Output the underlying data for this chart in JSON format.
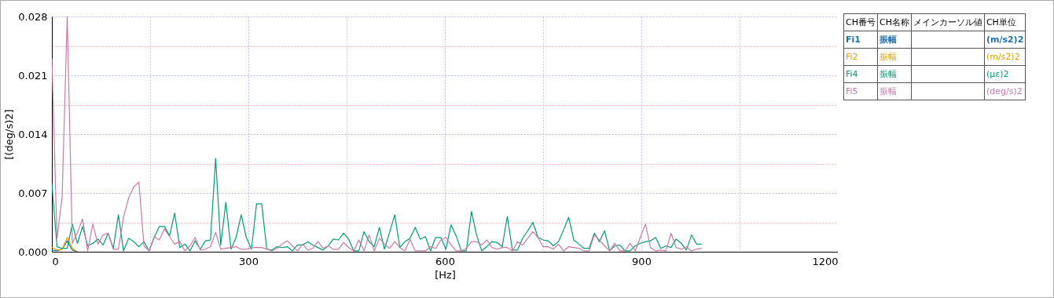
{
  "chart_data": {
    "type": "line",
    "xlabel": "[Hz]",
    "ylabel": "[(deg/s)2]",
    "legend": "right",
    "grid": true,
    "xlim": [
      0,
      1200
    ],
    "xticks": [
      0,
      {
        "value": 150,
        "label": null
      },
      300,
      {
        "value": 450,
        "label": null
      },
      600,
      {
        "value": 750,
        "label": null
      },
      900,
      {
        "value": 1050,
        "label": null
      },
      1200
    ],
    "ylim": [
      0,
      0.028
    ],
    "yticks": [
      {
        "value": 0,
        "label": "0.000"
      },
      {
        "value": 0.0035,
        "label": null
      },
      0.007,
      {
        "value": 0.0105,
        "label": null
      },
      0.014,
      {
        "value": 0.0175,
        "label": null
      },
      0.021,
      {
        "value": 0.0245,
        "label": null
      },
      0.028
    ],
    "annotations": [
      "CH番号",
      "CH名称",
      "メインカーソル値",
      "CH単位",
      "振幅",
      "(m/s2)2",
      "振幅",
      "(m/s2)2",
      "振幅",
      "(με)2",
      "振幅",
      "(deg/s)2"
    ],
    "x": [
      0,
      7.8125,
      15.625,
      23.4375,
      31.25,
      39.0625,
      46.875,
      54.6875,
      62.5,
      70.3125,
      78.125,
      85.9375,
      93.75,
      101.5625,
      109.375,
      117.1875,
      125,
      132.8125,
      140.625,
      148.4375,
      156.25,
      164.0625,
      171.875,
      179.6875,
      187.5,
      195.3125,
      203.125,
      210.9375,
      218.75,
      226.5625,
      234.375,
      242.1875,
      250,
      257.8125,
      265.625,
      273.4375,
      281.25,
      289.0625,
      296.875,
      304.6875,
      312.5,
      320.3125,
      328.125,
      335.9375,
      343.75,
      351.5625,
      359.375,
      367.1875,
      375,
      382.8125,
      390.625,
      398.4375,
      406.25,
      414.0625,
      421.875,
      429.6875,
      437.5,
      445.3125,
      453.125,
      460.9375,
      468.75,
      476.5625,
      484.375,
      492.1875,
      500,
      507.8125,
      515.625,
      523.4375,
      531.25,
      539.0625,
      546.875,
      554.6875,
      562.5,
      570.3125,
      578.125,
      585.9375,
      593.75,
      601.5625,
      609.375,
      617.1875,
      625,
      632.8125,
      640.625,
      648.4375,
      656.25,
      664.0625,
      671.875,
      679.6875,
      687.5,
      695.3125,
      703.125,
      710.9375,
      718.75,
      726.5625,
      734.375,
      742.1875,
      750,
      757.8125,
      765.625,
      773.4375,
      781.25,
      789.0625,
      796.875,
      804.6875,
      812.5,
      820.3125,
      828.125,
      835.9375,
      843.75,
      851.5625,
      859.375,
      867.1875,
      875,
      882.8125,
      890.625,
      898.4375,
      906.25,
      914.0625,
      921.875,
      929.6875,
      937.5,
      945.3125,
      953.125,
      960.9375,
      968.75,
      976.5625,
      984.375,
      992.1875
    ],
    "series": [
      {
        "name": "Fi1",
        "color": "#1a72b5",
        "x": [
          0,
          7.8125,
          15.625,
          23.4375,
          31.25,
          39.0625
        ],
        "values": [
          0.0002,
          0.0001,
          0.0003,
          0.0013,
          0.0002,
          0
        ]
      },
      {
        "name": "Fi2",
        "color": "#e69f00",
        "x": [
          0,
          7.8125,
          15.625,
          23.4375,
          31.25,
          39.0625
        ],
        "values": [
          0.0005,
          0.0002,
          0.0003,
          0.0017,
          0.0004,
          0
        ]
      },
      {
        "name": "Fi4",
        "color": "#009e73",
        "values": [
          0.0081,
          0.0006,
          0.0004,
          0.0004,
          0.0033,
          0.001,
          0.003,
          0.0007,
          0.001,
          0.0015,
          0.0008,
          0.0022,
          0.0004,
          0.0044,
          0.0001,
          0.0016,
          0.0012,
          0.0006,
          0.0012,
          0.0001,
          0.0017,
          0.003,
          0.003,
          0.0019,
          0.0046,
          0.0005,
          0.0009,
          0.0001,
          0.0013,
          0.0003,
          0.0013,
          0.0014,
          0.0111,
          0.0008,
          0.0059,
          0.0003,
          0.0017,
          0.0044,
          0.0017,
          0.0003,
          0.0057,
          0.0057,
          0.0003,
          0.0002,
          0.0006,
          0.0005,
          0.0006,
          0.0001,
          0.0008,
          0.0008,
          0.0012,
          0.0008,
          0.0005,
          0.0002,
          0.0007,
          0.0015,
          0.0014,
          0.0022,
          0.0015,
          0.0001,
          0.0001,
          0.0024,
          0.0012,
          0.0006,
          0.0029,
          0.0003,
          0.0023,
          0.0044,
          0.0005,
          0.0012,
          0.0016,
          0.0029,
          0.0015,
          0.0018,
          0.0001,
          0.0017,
          0.0017,
          0.0003,
          0.0032,
          0.0019,
          0.0001,
          0.0001,
          0.0048,
          0.002,
          0.0001,
          0.0006,
          0.0012,
          0.0011,
          0.0006,
          0.0042,
          0.0002,
          0.0002,
          0.0016,
          0.0025,
          0.0035,
          0.0017,
          0.0014,
          0.0013,
          0.0007,
          0.0012,
          0.0026,
          0.0041,
          0.0014,
          0.0009,
          0.0004,
          0.0004,
          0.0022,
          0.0012,
          0.0025,
          0.0001,
          0.0007,
          0.0008,
          0.0001,
          0.0001,
          0.0007,
          0.001,
          0.0012,
          0.0013,
          0.0017,
          0.0004,
          0.0007,
          0.0005,
          0.0015,
          0.001,
          0.0002,
          0.002,
          0.0009,
          0.0009
        ]
      },
      {
        "name": "Fi5",
        "color": "#cc79a7",
        "values": [
          0.023,
          0.0016,
          0.0065,
          0.028,
          0.001,
          0.0023,
          0.0039,
          0.0001,
          0.0033,
          0.0009,
          0.002,
          0.0022,
          0.0003,
          0.0003,
          0.0041,
          0.0064,
          0.0077,
          0.0083,
          0.0007,
          0.0001,
          0.0018,
          0.0014,
          0.0027,
          0.0018,
          0.0009,
          0.0012,
          0.0001,
          0.0007,
          0.0017,
          0.0002,
          0.0003,
          0.0006,
          0.0023,
          0.0003,
          0.0004,
          0.0005,
          0.0006,
          0.0003,
          0.0003,
          0.0005,
          0.0005,
          0.0005,
          0.0003,
          0.0001,
          0.0004,
          0.0009,
          0.0013,
          0.0007,
          0.0001,
          0.0009,
          0.0002,
          0.0004,
          0.0012,
          0.0004,
          0.0007,
          0.0003,
          0.0003,
          0.0011,
          0.0005,
          0.0001,
          0.0014,
          0.0001,
          0.002,
          0.0001,
          0.0016,
          0.0009,
          0.0004,
          0.0012,
          0.0005,
          0.0001,
          0.0015,
          0.0001,
          0.0001,
          0.0001,
          0.0006,
          0.0004,
          0.0014,
          0.0017,
          0.0008,
          0.0001,
          0.0001,
          0.0004,
          0.0012,
          0.0012,
          0.0008,
          0.0014,
          0.0005,
          0.0003,
          0.0005,
          0.0005,
          0.0001,
          0.0012,
          0.0008,
          0.0016,
          0.0024,
          0.0017,
          0.0006,
          0.0006,
          0.0003,
          0.0009,
          0.0001,
          0.0006,
          0.0005,
          0.0004,
          0.0001,
          0.0001,
          0.002,
          0.0014,
          0.0007,
          0.0001,
          0.001,
          0.0001,
          0.0001,
          0.001,
          0.0001,
          0.0017,
          0.0033,
          0.0005,
          0.0001,
          0.0002,
          0.0001,
          0.0022,
          0.0005,
          0.0003,
          0.0006,
          0.0001,
          0.0003,
          0.0004
        ]
      }
    ]
  }
}
